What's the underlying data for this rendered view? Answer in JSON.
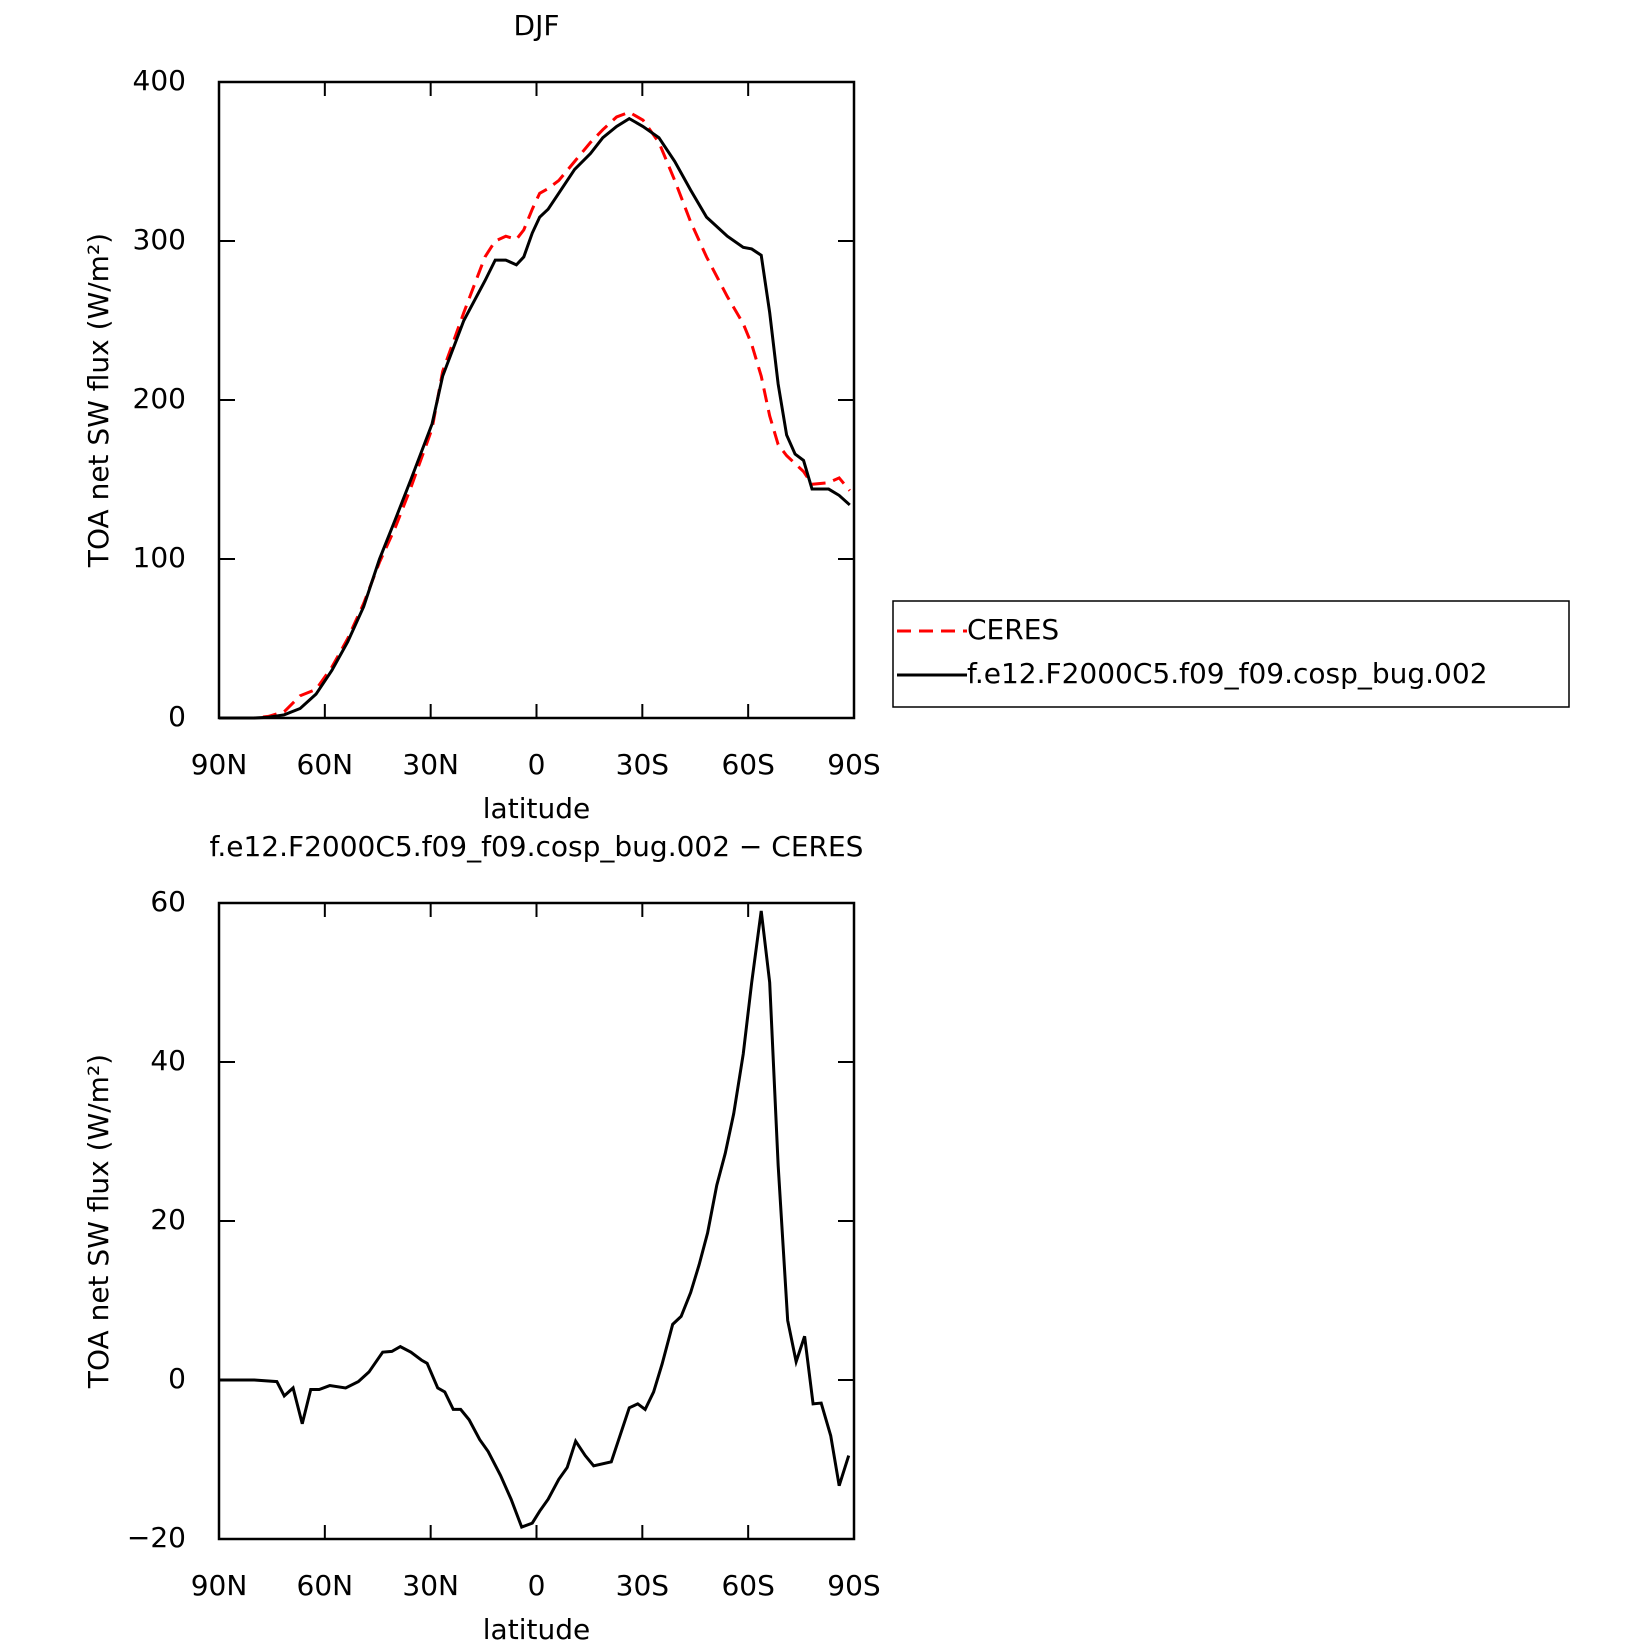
{
  "chart_data": [
    {
      "type": "line",
      "title": "DJF",
      "xlabel": "latitude",
      "ylabel": "TOA net SW flux (W/m²)",
      "x": [
        90,
        80,
        76,
        71.5,
        67,
        62.5,
        58,
        53.5,
        49,
        44.5,
        40,
        35.6,
        29.6,
        26.6,
        20.6,
        14.6,
        11.7,
        8.7,
        5.7,
        3.6,
        1.2,
        -0.9,
        -3.3,
        -6.3,
        -10.8,
        -15.3,
        -18.8,
        -22.7,
        -26.3,
        -30.2,
        -34.7,
        -39.2,
        -43.7,
        -48.2,
        -54.1,
        -58.6,
        -61,
        -63.7,
        -66.1,
        -68.5,
        -70.9,
        -73.3,
        -75.7,
        -78.1,
        -82.8,
        -85.8,
        -88.8
      ],
      "series": [
        {
          "name": "CERES",
          "color": "#ff0000",
          "style": "dashed",
          "values": [
            0,
            0,
            1,
            4,
            14,
            18,
            32,
            50,
            72,
            98,
            120,
            145,
            182,
            218,
            255,
            290,
            300,
            303,
            301,
            307,
            320,
            330,
            333,
            338,
            350,
            362,
            370,
            378,
            381,
            376,
            362,
            338,
            312,
            290,
            265,
            248,
            235,
            215,
            190,
            172,
            165,
            160,
            155,
            147,
            148,
            151,
            143
          ]
        },
        {
          "name": "f.e12.F2000C5.f09_f09.cosp_bug.002",
          "color": "#000000",
          "style": "solid",
          "values": [
            0,
            0,
            0.5,
            2,
            6,
            15,
            30,
            48,
            70,
            100,
            125,
            150,
            185,
            215,
            250,
            275,
            288,
            288,
            285,
            290,
            305,
            315,
            320,
            330,
            345,
            355,
            365,
            372,
            377,
            372,
            365,
            350,
            332,
            315,
            303,
            296,
            295,
            291,
            255,
            210,
            178,
            166,
            162,
            144,
            144,
            140,
            134
          ]
        }
      ],
      "xlim": [
        90,
        -90
      ],
      "xticks": [
        {
          "value": 90,
          "label": "90N"
        },
        {
          "value": 60,
          "label": "60N"
        },
        {
          "value": 30,
          "label": "30N"
        },
        0,
        {
          "value": -30,
          "label": "30S"
        },
        {
          "value": -60,
          "label": "60S"
        },
        {
          "value": -90,
          "label": "90S"
        }
      ],
      "ylim": [
        0,
        400
      ],
      "yticks": [
        0,
        100,
        200,
        300,
        400
      ],
      "legend": "right"
    },
    {
      "type": "line",
      "title": "f.e12.F2000C5.f09_f09.cosp_bug.002 − CERES",
      "xlabel": "latitude",
      "ylabel": "TOA net SW flux (W/m²)",
      "x": [
        90,
        80,
        73.6,
        71.5,
        69,
        66.4,
        64,
        61.6,
        58.6,
        54.1,
        50.5,
        47.5,
        43.6,
        41,
        38.6,
        35.6,
        32.6,
        31,
        28,
        26,
        23.6,
        21.5,
        19.1,
        16.1,
        13.7,
        10.2,
        7.2,
        4.2,
        1.2,
        -0.9,
        -3.3,
        -6.3,
        -8.7,
        -11.1,
        -13.8,
        -16.2,
        -21.2,
        -26.3,
        -28.7,
        -30.8,
        -33.2,
        -35.6,
        -38.6,
        -41,
        -43.7,
        -46.1,
        -48.5,
        -51.1,
        -53.5,
        -55.9,
        -58.6,
        -61,
        -63.7,
        -66.1,
        -68.5,
        -71.2,
        -73.6,
        -76,
        -78.4,
        -80.7,
        -83.4,
        -85.8,
        -88.5
      ],
      "series": [
        {
          "color": "#000000",
          "style": "solid",
          "values": [
            0,
            0,
            -0.2,
            -2,
            -1,
            -5.5,
            -1.2,
            -1.2,
            -0.7,
            -1,
            -0.2,
            1,
            3.5,
            3.6,
            4.2,
            3.5,
            2.5,
            2.1,
            -1,
            -1.5,
            -3.7,
            -3.7,
            -5,
            -7.5,
            -9,
            -12,
            -15,
            -18.5,
            -18,
            -16.5,
            -15,
            -12.5,
            -11,
            -7.7,
            -9.5,
            -10.8,
            -10.3,
            -3.5,
            -3,
            -3.7,
            -1.5,
            2,
            7,
            8,
            11,
            14.5,
            18.5,
            24.5,
            28.5,
            33.5,
            41,
            50,
            59,
            50,
            27,
            7.5,
            2.3,
            5.5,
            -3,
            -2.9,
            -7,
            -13.3,
            -9.5
          ]
        }
      ],
      "xlim": [
        90,
        -90
      ],
      "xticks": [
        {
          "value": 90,
          "label": "90N"
        },
        {
          "value": 60,
          "label": "60N"
        },
        {
          "value": 30,
          "label": "30N"
        },
        0,
        {
          "value": -30,
          "label": "30S"
        },
        {
          "value": -60,
          "label": "60S"
        },
        {
          "value": -90,
          "label": "90S"
        }
      ],
      "ylim": [
        -20,
        60
      ],
      "yticks": [
        {
          "value": -20,
          "label": "−20"
        },
        0,
        20,
        40,
        60
      ]
    }
  ]
}
